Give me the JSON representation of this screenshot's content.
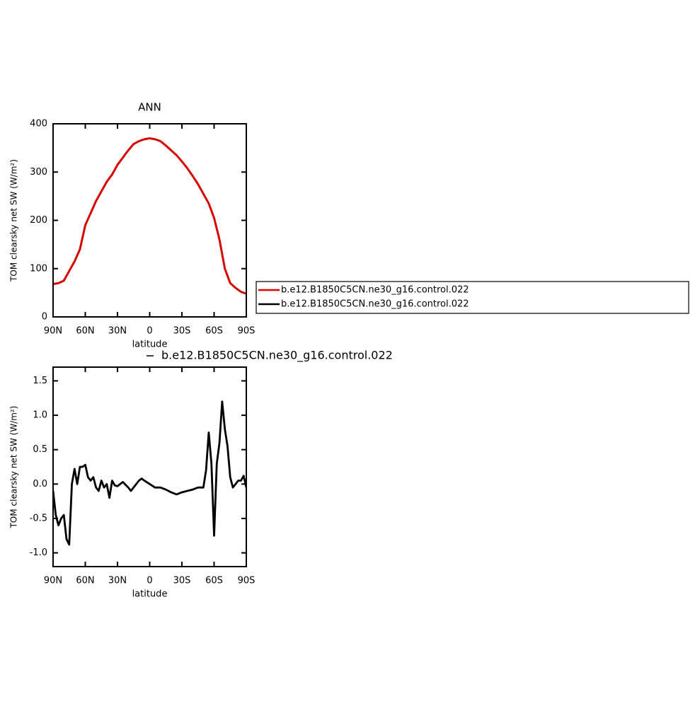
{
  "chart_data": [
    {
      "type": "line",
      "title": "ANN",
      "xlabel": "latitude",
      "ylabel": "TOM clearsky net SW (W/m²)",
      "x": [
        90,
        85,
        80,
        75,
        70,
        65,
        60,
        55,
        50,
        45,
        40,
        35,
        30,
        25,
        20,
        15,
        10,
        5,
        0,
        -5,
        -10,
        -15,
        -20,
        -25,
        -30,
        -35,
        -40,
        -45,
        -50,
        -55,
        -60,
        -65,
        -70,
        -75,
        -80,
        -85,
        -90
      ],
      "series": [
        {
          "name": "b.e12.B1850C5CN.ne30_g16.control.022",
          "color": "#e00000",
          "values": [
            68,
            70,
            75,
            95,
            115,
            140,
            190,
            215,
            240,
            260,
            280,
            295,
            315,
            330,
            345,
            358,
            364,
            368,
            370,
            368,
            364,
            355,
            345,
            335,
            322,
            308,
            292,
            275,
            255,
            235,
            205,
            160,
            100,
            70,
            60,
            52,
            48
          ]
        },
        {
          "name": "b.e12.B1850C5CN.ne30_g16.control.022",
          "color": "#000000",
          "values": [
            68,
            70,
            75,
            95,
            115,
            140,
            190,
            215,
            240,
            260,
            280,
            295,
            315,
            330,
            345,
            358,
            364,
            368,
            370,
            368,
            364,
            355,
            345,
            335,
            322,
            308,
            292,
            275,
            255,
            235,
            205,
            160,
            100,
            70,
            60,
            52,
            48
          ]
        }
      ],
      "xlim": [
        90,
        -90
      ],
      "xticks": [
        {
          "value": 90,
          "label": "90N"
        },
        {
          "value": 60,
          "label": "60N"
        },
        {
          "value": 30,
          "label": "30N"
        },
        0,
        {
          "value": -30,
          "label": "30S"
        },
        {
          "value": -60,
          "label": "60S"
        },
        {
          "value": -90,
          "label": "90S"
        }
      ],
      "ylim": [
        0,
        400
      ],
      "yticks": [
        0,
        100,
        200,
        300,
        400
      ]
    },
    {
      "type": "line",
      "xlabel": "latitude",
      "ylabel": "TOM clearsky net SW (W/m²)",
      "x": [
        90,
        87.5,
        85,
        82.5,
        80,
        77.5,
        75,
        72.5,
        70,
        67.5,
        65,
        62.5,
        60,
        57.5,
        55,
        52.5,
        50,
        47.5,
        45,
        42.5,
        40,
        37.5,
        35,
        32.5,
        30,
        25,
        20,
        17.5,
        15,
        10,
        7.5,
        5,
        0,
        -5,
        -10,
        -15,
        -20,
        -25,
        -30,
        -35,
        -40,
        -45,
        -50,
        -52.5,
        -55,
        -57.5,
        -60,
        -62.5,
        -65,
        -67.5,
        -70,
        -72.5,
        -75,
        -77.5,
        -80,
        -82.5,
        -85,
        -87.5,
        -90
      ],
      "series": [
        {
          "name": "b.e12.B1850C5CN.ne30_g16.control.022",
          "color": "#000000",
          "values": [
            -0.1,
            -0.45,
            -0.6,
            -0.5,
            -0.45,
            -0.8,
            -0.88,
            0.0,
            0.22,
            0.0,
            0.25,
            0.25,
            0.28,
            0.1,
            0.05,
            0.1,
            -0.05,
            -0.1,
            0.05,
            -0.05,
            0.0,
            -0.2,
            0.05,
            -0.02,
            -0.03,
            0.03,
            -0.05,
            -0.1,
            -0.05,
            0.05,
            0.08,
            0.05,
            0.0,
            -0.05,
            -0.05,
            -0.08,
            -0.12,
            -0.15,
            -0.12,
            -0.1,
            -0.08,
            -0.05,
            -0.05,
            0.2,
            0.75,
            0.3,
            -0.75,
            0.3,
            0.6,
            1.2,
            0.8,
            0.55,
            0.1,
            -0.05,
            0.0,
            0.05,
            0.05,
            0.12,
            -0.05
          ]
        }
      ],
      "xlim": [
        90,
        -90
      ],
      "xticks": [
        {
          "value": 90,
          "label": "90N"
        },
        {
          "value": 60,
          "label": "60N"
        },
        {
          "value": 30,
          "label": "30N"
        },
        0,
        {
          "value": -30,
          "label": "30S"
        },
        {
          "value": -60,
          "label": "60S"
        },
        {
          "value": -90,
          "label": "90S"
        }
      ],
      "ylim": [
        -1.2,
        1.7
      ],
      "yticks": [
        {
          "value": -1,
          "label": "-1.0"
        },
        {
          "value": -0.5,
          "label": "-0.5"
        },
        {
          "value": 0,
          "label": "0.0"
        },
        0.5,
        {
          "value": 1,
          "label": "1.0"
        },
        1.5
      ]
    }
  ]
}
